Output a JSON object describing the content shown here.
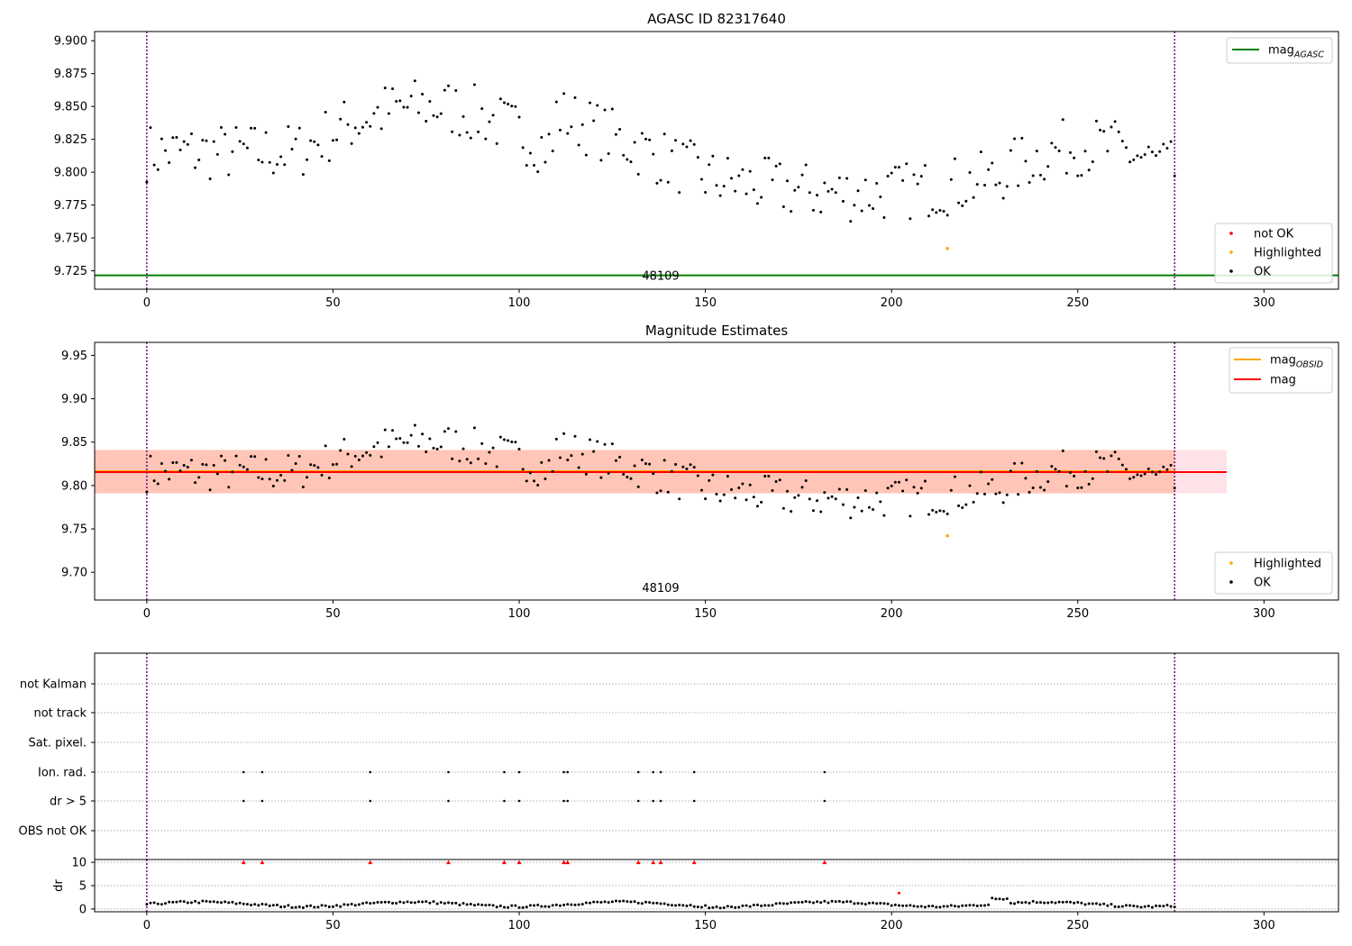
{
  "chart_data": [
    {
      "type": "scatter",
      "title": "AGASC ID 82317640",
      "xlim": [
        -14,
        320
      ],
      "ylim": [
        9.711,
        9.907
      ],
      "xticks": [
        0,
        50,
        100,
        150,
        200,
        250,
        300
      ],
      "yticks": [
        9.725,
        9.75,
        9.775,
        9.8,
        9.825,
        9.85,
        9.875,
        9.9
      ],
      "obsid_label": "48109",
      "vlines": [
        0,
        276
      ],
      "hline": {
        "name": "mag",
        "sub": "AGASC",
        "value": 9.7215,
        "color": "#008000"
      },
      "legend_lines": [
        {
          "name": "mag",
          "sub": "AGASC",
          "color": "#008000"
        }
      ],
      "legend_points": [
        {
          "name": "not OK",
          "color": "#ff0000"
        },
        {
          "name": "Highlighted",
          "color": "#ffa500"
        },
        {
          "name": "OK",
          "color": "#000000"
        }
      ],
      "highlighted": [
        [
          215,
          9.742
        ]
      ]
    },
    {
      "type": "scatter",
      "title": "Magnitude Estimates",
      "xlim": [
        -14,
        320
      ],
      "ylim": [
        9.668,
        9.965
      ],
      "xticks": [
        0,
        50,
        100,
        150,
        200,
        250,
        300
      ],
      "yticks": [
        9.7,
        9.75,
        9.8,
        9.85,
        9.9,
        9.95
      ],
      "obsid_label": "48109",
      "vlines": [
        0,
        276
      ],
      "bands": [
        {
          "y0": 9.791,
          "y1": 9.841,
          "x0": -14,
          "x1": 290,
          "color": "#ffc0cb",
          "opacity": 0.45
        },
        {
          "y0": 9.791,
          "y1": 9.841,
          "x0": -14,
          "x1": 276,
          "color": "#ffa07a",
          "opacity": 0.45
        }
      ],
      "hlines": [
        {
          "name": "mag",
          "sub": "OBSID",
          "value": 9.8165,
          "color": "#ffa500",
          "x1": 276
        },
        {
          "name": "mag",
          "sub": "",
          "value": 9.8155,
          "color": "#ff0000",
          "x1": 290
        }
      ],
      "legend_lines": [
        {
          "name": "mag",
          "sub": "OBSID",
          "color": "#ffa500"
        },
        {
          "name": "mag",
          "sub": "",
          "color": "#ff0000"
        }
      ],
      "legend_points": [
        {
          "name": "Highlighted",
          "color": "#ffa500"
        },
        {
          "name": "OK",
          "color": "#000000"
        }
      ],
      "highlighted": [
        [
          215,
          9.742
        ]
      ]
    },
    {
      "type": "scatter",
      "flag_rows": [
        "not Kalman",
        "not track",
        "Sat. pixel.",
        "Ion. rad.",
        "dr > 5",
        "OBS not OK"
      ],
      "flag_points": {
        "Ion. rad.": [
          26,
          31,
          60,
          81,
          96,
          100,
          112,
          113,
          132,
          136,
          138,
          147,
          182
        ],
        "dr > 5": [
          26,
          31,
          60,
          81,
          96,
          100,
          112,
          113,
          132,
          136,
          138,
          147,
          182
        ]
      },
      "dr_ylabel": "dr",
      "dr_yticks": [
        0,
        5,
        10
      ],
      "dr_ylim": [
        -0.6,
        10.6
      ],
      "dr_clipped_x": [
        26,
        31,
        60,
        81,
        96,
        100,
        112,
        113,
        132,
        136,
        138,
        147,
        182
      ],
      "dr_red_points": [
        [
          202,
          3.4
        ]
      ],
      "xlim": [
        -14,
        320
      ],
      "xticks": [
        0,
        50,
        100,
        150,
        200,
        250,
        300
      ],
      "vlines": [
        0,
        276
      ]
    }
  ]
}
